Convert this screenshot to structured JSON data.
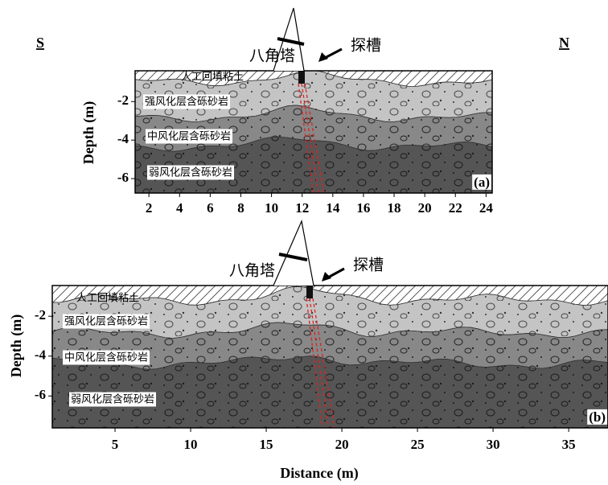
{
  "header": {
    "left": "S",
    "right": "N"
  },
  "panels": [
    {
      "label": "(a)",
      "tower": "八角塔",
      "trench": "探槽",
      "layers": [
        "人工回填粘土",
        "强风化层含砾砂岩",
        "中风化层含砾砂岩",
        "弱风化层含砾砂岩"
      ],
      "y_axis_label": "Depth (m)",
      "xlim": [
        1.1,
        24.4
      ],
      "ylim": [
        -6.75,
        -0.4
      ],
      "xticks": [
        2,
        4,
        6,
        8,
        10,
        12,
        14,
        16,
        18,
        20,
        22,
        24
      ],
      "yticks": [
        -2,
        -4,
        -6
      ]
    },
    {
      "label": "(b)",
      "tower": "八角塔",
      "trench": "探槽",
      "layers": [
        "人工回填粘土",
        "强风化层含砾砂岩",
        "中风化层含砾砂岩",
        "弱风化层含砾砂岩"
      ],
      "y_axis_label": "Depth (m)",
      "xlim": [
        0.85,
        37.6
      ],
      "ylim": [
        -7.6,
        -0.46
      ],
      "xticks": [
        5,
        10,
        15,
        20,
        25,
        30,
        35
      ],
      "yticks": [
        -2,
        -4,
        -6
      ]
    }
  ],
  "x_axis_label": "Distance (m)"
}
